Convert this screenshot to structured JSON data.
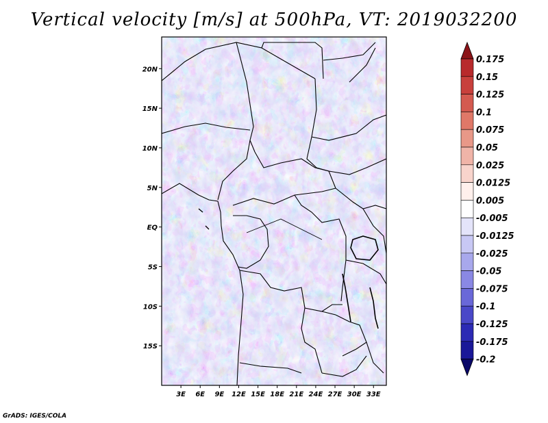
{
  "title": "Vertical velocity [m/s] at 500hPa, VT: 2019032200",
  "credit": "GrADS: IGES/COLA",
  "map": {
    "region": "Central Africa",
    "variable": "Vertical velocity",
    "units": "m/s",
    "level": "500hPa",
    "valid_time": "2019032200",
    "lon_range": [
      0,
      35
    ],
    "lat_range": [
      -20,
      24
    ],
    "lon_ticks": [
      {
        "value": 3,
        "label": "3E"
      },
      {
        "value": 6,
        "label": "6E"
      },
      {
        "value": 9,
        "label": "9E"
      },
      {
        "value": 12,
        "label": "12E"
      },
      {
        "value": 15,
        "label": "15E"
      },
      {
        "value": 18,
        "label": "18E"
      },
      {
        "value": 21,
        "label": "21E"
      },
      {
        "value": 24,
        "label": "24E"
      },
      {
        "value": 27,
        "label": "27E"
      },
      {
        "value": 30,
        "label": "30E"
      },
      {
        "value": 33,
        "label": "33E"
      }
    ],
    "lat_ticks": [
      {
        "value": 20,
        "label": "20N"
      },
      {
        "value": 15,
        "label": "15N"
      },
      {
        "value": 10,
        "label": "10N"
      },
      {
        "value": 5,
        "label": "5N"
      },
      {
        "value": 0,
        "label": "EQ"
      },
      {
        "value": -5,
        "label": "5S"
      },
      {
        "value": -10,
        "label": "10S"
      },
      {
        "value": -15,
        "label": "15S"
      }
    ]
  },
  "colorbar": {
    "labels": [
      "0.175",
      "0.15",
      "0.125",
      "0.1",
      "0.075",
      "0.05",
      "0.025",
      "0.0125",
      "0.005",
      "-0.005",
      "-0.0125",
      "-0.025",
      "-0.05",
      "-0.075",
      "-0.1",
      "-0.125",
      "-0.175",
      "-0.2"
    ],
    "colors": [
      "#a01820",
      "#b82a2c",
      "#c8403c",
      "#d45a50",
      "#e07868",
      "#e89888",
      "#f0b4a8",
      "#f8d4cc",
      "#fff0ec",
      "#ffffff",
      "#e4e4fa",
      "#c8c8f4",
      "#a8a8ec",
      "#8a88e4",
      "#6a68d8",
      "#4a48c8",
      "#2c2ab4",
      "#1a1898",
      "#0c0a78"
    ],
    "top_color": "#8c1418",
    "bottom_color": "#0a0868"
  }
}
